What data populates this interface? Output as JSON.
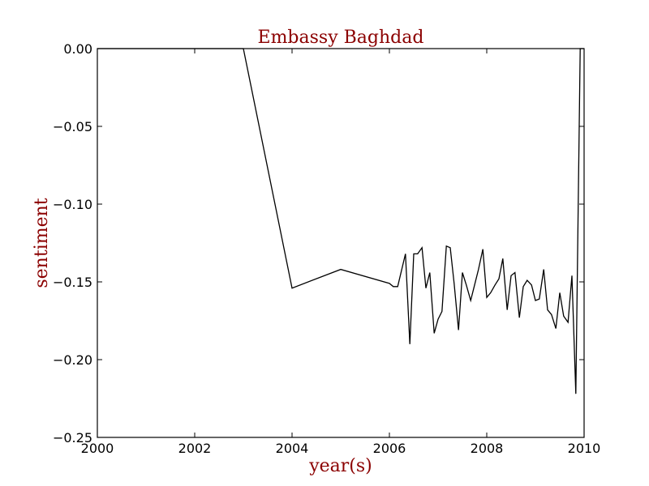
{
  "chart_data": {
    "type": "line",
    "title": "Embassy Baghdad",
    "xlabel": "year(s)",
    "ylabel": "sentiment",
    "xlim": [
      2000,
      2010
    ],
    "ylim": [
      -0.25,
      0.0
    ],
    "grid": false,
    "x_ticks": [
      2000,
      2002,
      2004,
      2006,
      2008,
      2010
    ],
    "x_tick_labels": [
      "2000",
      "2002",
      "2004",
      "2006",
      "2008",
      "2010"
    ],
    "y_ticks": [
      0.0,
      -0.05,
      -0.1,
      -0.15,
      -0.2,
      -0.25
    ],
    "y_tick_labels": [
      "0.00",
      "−0.05",
      "−0.10",
      "−0.15",
      "−0.20",
      "−0.25"
    ],
    "colors": {
      "line": "#000000",
      "title": "#8b0000",
      "axis_title": "#8b0000"
    },
    "series": [
      {
        "x": [
          2000.0,
          2003.0,
          2004.0,
          2005.0,
          2006.0,
          2006.08,
          2006.17,
          2006.33,
          2006.42,
          2006.5,
          2006.58,
          2006.67,
          2006.75,
          2006.83,
          2006.92,
          2007.0,
          2007.08,
          2007.17,
          2007.25,
          2007.33,
          2007.42,
          2007.5,
          2007.58,
          2007.67,
          2007.75,
          2007.83,
          2007.92,
          2008.0,
          2008.08,
          2008.17,
          2008.25,
          2008.33,
          2008.42,
          2008.5,
          2008.58,
          2008.67,
          2008.75,
          2008.83,
          2008.92,
          2009.0,
          2009.08,
          2009.17,
          2009.25,
          2009.33,
          2009.42,
          2009.5,
          2009.58,
          2009.67,
          2009.75,
          2009.83,
          2009.92,
          2010.0
        ],
        "y": [
          0.0,
          0.0,
          -0.154,
          -0.142,
          -0.151,
          -0.153,
          -0.153,
          -0.132,
          -0.19,
          -0.132,
          -0.132,
          -0.128,
          -0.154,
          -0.144,
          -0.183,
          -0.174,
          -0.169,
          -0.127,
          -0.128,
          -0.151,
          -0.181,
          -0.144,
          -0.152,
          -0.162,
          -0.152,
          -0.142,
          -0.129,
          -0.16,
          -0.157,
          -0.152,
          -0.148,
          -0.135,
          -0.168,
          -0.146,
          -0.144,
          -0.173,
          -0.153,
          -0.149,
          -0.152,
          -0.162,
          -0.161,
          -0.142,
          -0.168,
          -0.171,
          -0.18,
          -0.157,
          -0.172,
          -0.176,
          -0.146,
          -0.222,
          0.0,
          0.0
        ]
      }
    ]
  }
}
